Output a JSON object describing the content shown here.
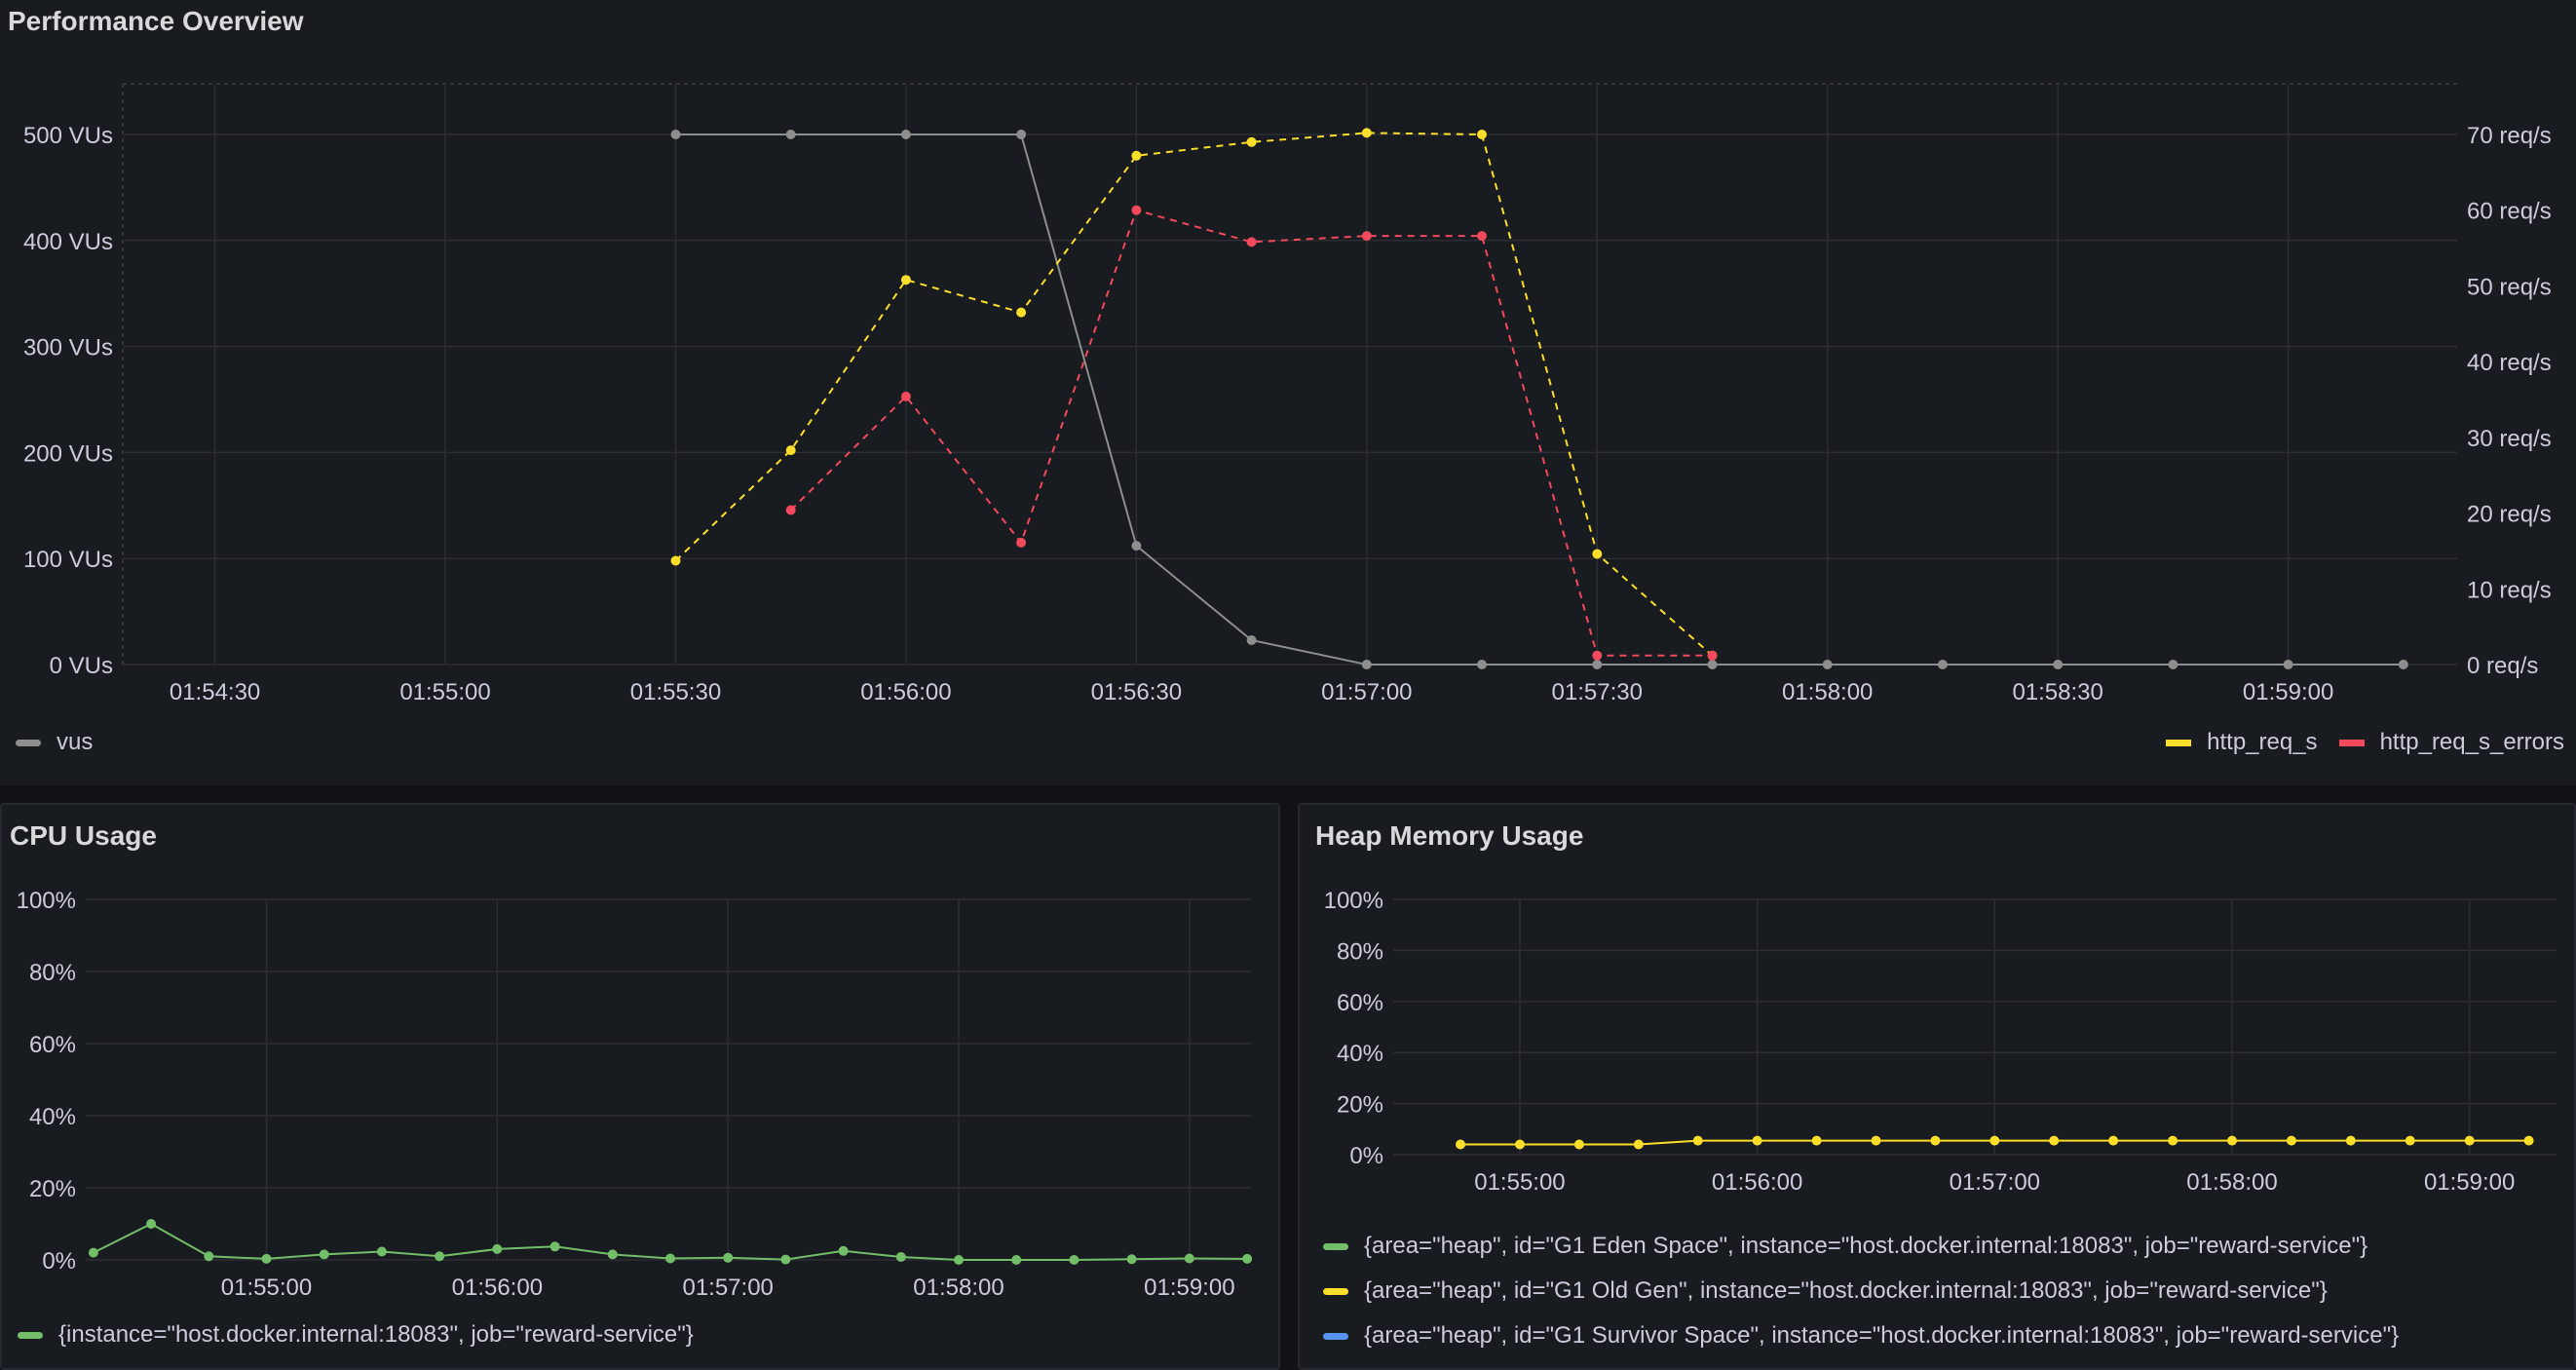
{
  "perf": {
    "title": "Performance Overview",
    "legend": [
      {
        "label": "vus",
        "color": "#8e8e8e"
      },
      {
        "label": "http_req_s",
        "color": "#fade2a"
      },
      {
        "label": "http_req_s_errors",
        "color": "#f2495c"
      }
    ]
  },
  "cpu": {
    "title": "CPU Usage",
    "legend": [
      {
        "label": "{instance=\"host.docker.internal:18083\", job=\"reward-service\"}",
        "color": "#73bf69"
      }
    ]
  },
  "heap": {
    "title": "Heap Memory Usage",
    "legend": [
      {
        "label": "{area=\"heap\", id=\"G1 Eden Space\", instance=\"host.docker.internal:18083\", job=\"reward-service\"}",
        "color": "#73bf69"
      },
      {
        "label": "{area=\"heap\", id=\"G1 Old Gen\", instance=\"host.docker.internal:18083\", job=\"reward-service\"}",
        "color": "#fade2a"
      },
      {
        "label": "{area=\"heap\", id=\"G1 Survivor Space\", instance=\"host.docker.internal:18083\", job=\"reward-service\"}",
        "color": "#5794f2"
      }
    ]
  },
  "chart_data": [
    {
      "type": "line",
      "title": "Performance Overview",
      "x_ticks": [
        "01:54:30",
        "01:55:00",
        "01:55:30",
        "01:56:00",
        "01:56:30",
        "01:57:00",
        "01:57:30",
        "01:58:00",
        "01:58:30",
        "01:59:00"
      ],
      "y_left_ticks": [
        "0 VUs",
        "100 VUs",
        "200 VUs",
        "300 VUs",
        "400 VUs",
        "500 VUs"
      ],
      "y_right_ticks": [
        "0 req/s",
        "10 req/s",
        "20 req/s",
        "30 req/s",
        "40 req/s",
        "50 req/s",
        "60 req/s",
        "70 req/s"
      ],
      "ylim_left": [
        0,
        500
      ],
      "ylim_right": [
        0,
        70
      ],
      "series": [
        {
          "name": "vus",
          "axis": "left",
          "color": "#8e8e8e",
          "dashed": false,
          "x": [
            "01:55:30",
            "01:55:45",
            "01:56:00",
            "01:56:15",
            "01:56:30",
            "01:56:45",
            "01:57:00",
            "01:57:15",
            "01:57:30",
            "01:57:45",
            "01:58:00",
            "01:58:15",
            "01:58:30",
            "01:58:45",
            "01:59:00",
            "01:59:15"
          ],
          "y": [
            500,
            500,
            500,
            500,
            112,
            23,
            0,
            0,
            0,
            0,
            0,
            0,
            0,
            0,
            0,
            0
          ]
        },
        {
          "name": "http_req_s",
          "axis": "right",
          "color": "#fade2a",
          "dashed": true,
          "x": [
            "01:55:30",
            "01:55:45",
            "01:56:00",
            "01:56:15",
            "01:56:30",
            "01:56:45",
            "01:57:00",
            "01:57:15",
            "01:57:30",
            "01:57:45"
          ],
          "y": [
            13.7,
            28.3,
            50.8,
            46.5,
            67.2,
            69.0,
            70.2,
            70.0,
            14.6,
            1.2
          ]
        },
        {
          "name": "http_req_s_errors",
          "axis": "right",
          "color": "#f2495c",
          "dashed": true,
          "x": [
            "01:55:45",
            "01:56:00",
            "01:56:15",
            "01:56:30",
            "01:56:45",
            "01:57:00",
            "01:57:15",
            "01:57:30",
            "01:57:45"
          ],
          "y": [
            20.4,
            35.4,
            16.1,
            60.0,
            55.8,
            56.6,
            56.6,
            1.2,
            1.2
          ]
        }
      ]
    },
    {
      "type": "line",
      "title": "CPU Usage",
      "x_ticks": [
        "01:55:00",
        "01:56:00",
        "01:57:00",
        "01:58:00",
        "01:59:00"
      ],
      "y_ticks": [
        "0%",
        "20%",
        "40%",
        "60%",
        "80%",
        "100%"
      ],
      "ylim": [
        0,
        100
      ],
      "series": [
        {
          "name": "{instance=\"host.docker.internal:18083\", job=\"reward-service\"}",
          "color": "#73bf69",
          "x": [
            "01:54:15",
            "01:54:30",
            "01:54:45",
            "01:55:00",
            "01:55:15",
            "01:55:30",
            "01:55:45",
            "01:56:00",
            "01:56:15",
            "01:56:30",
            "01:56:45",
            "01:57:00",
            "01:57:15",
            "01:57:30",
            "01:57:45",
            "01:58:00",
            "01:58:15",
            "01:58:30",
            "01:58:45",
            "01:59:00",
            "01:59:15"
          ],
          "y": [
            2.0,
            10.0,
            1.0,
            0.3,
            1.5,
            2.3,
            1.0,
            3.0,
            3.7,
            1.5,
            0.4,
            0.6,
            0.1,
            2.5,
            0.8,
            0.0,
            0.0,
            0.0,
            0.2,
            0.4,
            0.3
          ]
        }
      ]
    },
    {
      "type": "line",
      "title": "Heap Memory Usage",
      "x_ticks": [
        "01:55:00",
        "01:56:00",
        "01:57:00",
        "01:58:00",
        "01:59:00"
      ],
      "y_ticks": [
        "0%",
        "20%",
        "40%",
        "60%",
        "80%",
        "100%"
      ],
      "ylim": [
        0,
        100
      ],
      "series": [
        {
          "name": "{area=\"heap\", id=\"G1 Old Gen\", instance=\"host.docker.internal:18083\", job=\"reward-service\"}",
          "color": "#fade2a",
          "x": [
            "01:54:45",
            "01:55:00",
            "01:55:15",
            "01:55:30",
            "01:55:45",
            "01:56:00",
            "01:56:15",
            "01:56:30",
            "01:56:45",
            "01:57:00",
            "01:57:15",
            "01:57:30",
            "01:57:45",
            "01:58:00",
            "01:58:15",
            "01:58:30",
            "01:58:45",
            "01:59:00",
            "01:59:15"
          ],
          "y": [
            4.0,
            4.0,
            4.0,
            4.0,
            5.5,
            5.5,
            5.5,
            5.5,
            5.5,
            5.5,
            5.5,
            5.5,
            5.5,
            5.5,
            5.5,
            5.5,
            5.5,
            5.5,
            5.5
          ]
        }
      ]
    }
  ]
}
